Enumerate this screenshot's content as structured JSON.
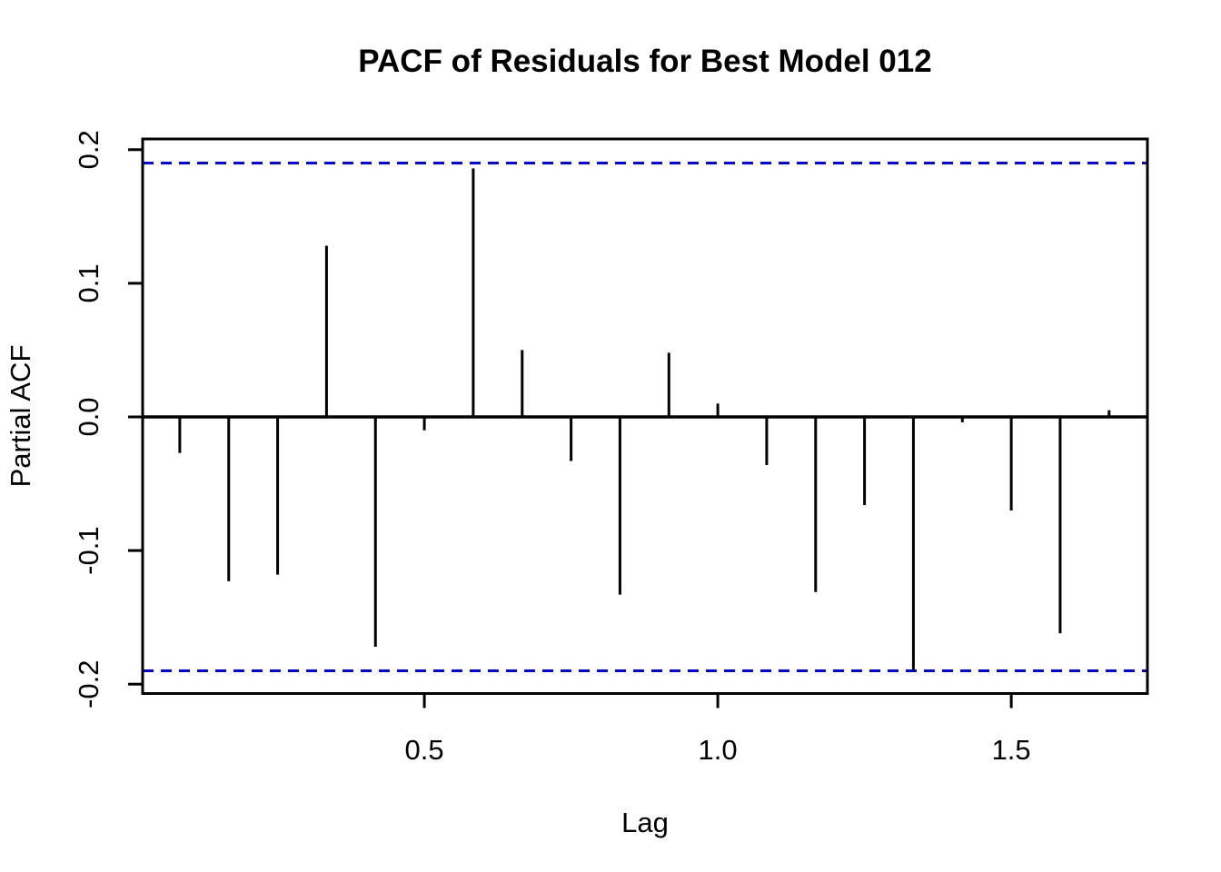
{
  "chart_data": {
    "type": "bar",
    "style": "vertical-stem-pacf",
    "title": "PACF of Residuals for Best Model 012",
    "xlabel": "Lag",
    "ylabel": "Partial ACF",
    "x": [
      0.0833,
      0.1667,
      0.25,
      0.3333,
      0.4167,
      0.5,
      0.5833,
      0.6667,
      0.75,
      0.8333,
      0.9167,
      1.0,
      1.0833,
      1.1667,
      1.25,
      1.3333,
      1.4167,
      1.5,
      1.5833,
      1.6667
    ],
    "values": [
      -0.027,
      -0.123,
      -0.118,
      0.128,
      -0.172,
      -0.01,
      0.186,
      0.05,
      -0.033,
      -0.133,
      0.048,
      0.01,
      -0.036,
      -0.131,
      -0.066,
      -0.19,
      -0.004,
      -0.07,
      -0.162,
      0.005
    ],
    "x_ticks": [
      0.5,
      1.0,
      1.5
    ],
    "x_tick_labels": [
      "0.5",
      "1.0",
      "1.5"
    ],
    "y_ticks": [
      -0.2,
      -0.1,
      0.0,
      0.1,
      0.2
    ],
    "y_tick_labels": [
      "-0.2",
      "-0.1",
      "0.0",
      "0.1",
      "0.2"
    ],
    "xlim": [
      0.02,
      1.732
    ],
    "ylim": [
      -0.207,
      0.208
    ],
    "confidence_bands": {
      "upper": 0.19,
      "lower": -0.19,
      "line_style": "dashed",
      "color": "#0000FF"
    },
    "zero_line": 0.0,
    "grid": "off",
    "legend": "none",
    "colors": {
      "stem": "#000000",
      "frame": "#000000",
      "background": "#FFFFFF"
    }
  }
}
